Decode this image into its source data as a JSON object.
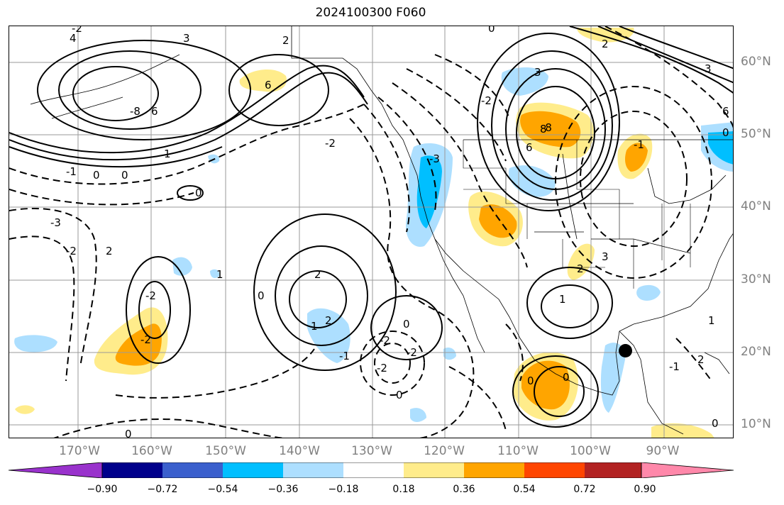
{
  "title": "2024100300 F060",
  "latitude_labels": [
    "60°N",
    "50°N",
    "40°N",
    "30°N",
    "20°N",
    "10°N"
  ],
  "longitude_labels": [
    "170°W",
    "160°W",
    "150°W",
    "140°W",
    "130°W",
    "120°W",
    "110°W",
    "100°W",
    "90°W"
  ],
  "colorbar": {
    "ticks": [
      "−0.90",
      "−0.72",
      "−0.54",
      "−0.36",
      "−0.18",
      "0.18",
      "0.36",
      "0.54",
      "0.72",
      "0.90"
    ],
    "colors": [
      "#9932CC",
      "#00008B",
      "#3A5FCD",
      "#00BFFF",
      "#ADDFFF",
      "#FFFFFF",
      "#FFEC8B",
      "#FFA500",
      "#FF4500",
      "#B22222",
      "#FF88AA"
    ]
  },
  "contour_labels": [
    "4",
    "3",
    "-2",
    "2",
    "-8",
    "6",
    "6",
    "-8",
    "-1",
    "0",
    "0",
    "1",
    "0",
    "-3",
    "-2",
    "2",
    "1",
    "-2",
    "-2",
    "0",
    "1",
    "2",
    "2",
    "0",
    "-1",
    "-2",
    "-2",
    "0",
    "-3",
    "-2",
    "2",
    "8",
    "6",
    "3",
    "-2",
    "0",
    "-1",
    "3",
    "6",
    "0",
    "1",
    "2",
    "3",
    "0",
    "0",
    "-1",
    "0",
    "1",
    "0",
    "2",
    "-2"
  ],
  "station_marker": "filled-circle"
}
